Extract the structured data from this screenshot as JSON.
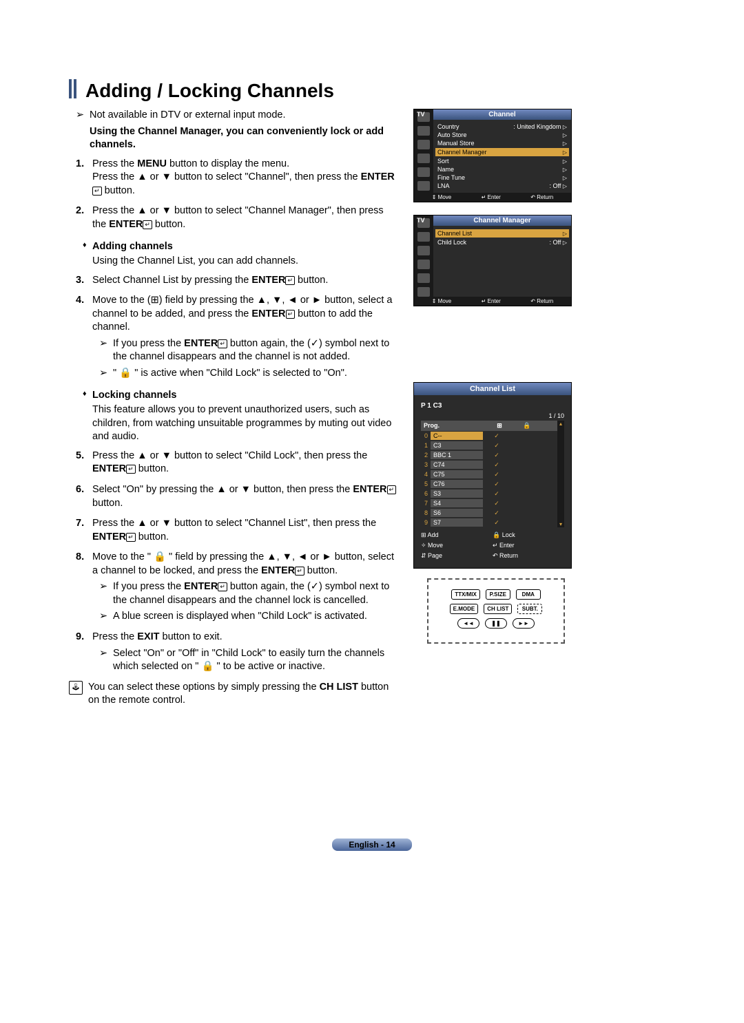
{
  "title": "Adding / Locking Channels",
  "note_not_available": "Not available in DTV or external input mode.",
  "intro_bold": "Using the Channel Manager, you can conveniently lock or add channels.",
  "steps": {
    "s1": {
      "num": "1.",
      "a": "Press the ",
      "b": "MENU",
      "c": " button to display the menu.",
      "d": "Press the ▲ or ▼ button to select \"Channel\", then press the ",
      "e": "ENTER",
      "f": " button."
    },
    "s2": {
      "num": "2.",
      "a": "Press the ▲ or ▼ button to select \"Channel Manager\", then press the ",
      "b": "ENTER",
      "c": " button."
    },
    "add_head": "Adding channels",
    "add_sub": "Using the Channel List, you can add channels.",
    "s3": {
      "num": "3.",
      "a": "Select Channel List by pressing the ",
      "b": "ENTER",
      "c": " button."
    },
    "s4": {
      "num": "4.",
      "a": "Move to the (⊞) field by pressing the ▲, ▼, ◄ or ► button, select a channel to be added, and press the ",
      "b": "ENTER",
      "c": " button to add the channel.",
      "n1a": "If you press the ",
      "n1b": "ENTER",
      "n1c": " button again, the (✓) symbol next to the channel disappears and the channel is not added.",
      "n2": "\" 🔒 \" is active when \"Child Lock\" is selected to \"On\"."
    },
    "lock_head": "Locking channels",
    "lock_sub": "This feature allows you to prevent unauthorized users, such as children, from watching unsuitable programmes by muting out video and audio.",
    "s5": {
      "num": "5.",
      "a": "Press the ▲ or ▼ button to select \"Child Lock\", then press the ",
      "b": "ENTER",
      "c": " button."
    },
    "s6": {
      "num": "6.",
      "a": "Select \"On\" by pressing the ▲ or ▼ button, then press the ",
      "b": "ENTER",
      "c": " button."
    },
    "s7": {
      "num": "7.",
      "a": "Press the ▲ or ▼ button to select \"Channel List\", then press the ",
      "b": "ENTER",
      "c": " button."
    },
    "s8": {
      "num": "8.",
      "a": "Move to the \" 🔒 \" field by pressing the ▲, ▼, ◄ or ► button, select a channel to be locked, and press the ",
      "b": "ENTER",
      "c": " button.",
      "n1a": "If you press the ",
      "n1b": "ENTER",
      "n1c": " button again, the (✓) symbol next to the channel disappears and the channel lock is cancelled.",
      "n2": "A blue screen is displayed when \"Child Lock\" is activated."
    },
    "s9": {
      "num": "9.",
      "a": "Press the ",
      "b": "EXIT",
      "c": " button to exit.",
      "n1": "Select \"On\" or \"Off\" in \"Child Lock\" to easily turn the channels which selected on \" 🔒 \" to be active or inactive."
    }
  },
  "footnote": {
    "a": "You can select these options by simply pressing the ",
    "b": "CH LIST",
    "c": " button on the remote control."
  },
  "osd1": {
    "tv": "TV",
    "title": "Channel",
    "rows": [
      {
        "l": "Country",
        "r": ": United Kingdom"
      },
      {
        "l": "Auto Store",
        "r": ""
      },
      {
        "l": "Manual Store",
        "r": ""
      },
      {
        "l": "Channel Manager",
        "r": "",
        "sel": true
      },
      {
        "l": "Sort",
        "r": ""
      },
      {
        "l": "Name",
        "r": ""
      },
      {
        "l": "Fine Tune",
        "r": ""
      },
      {
        "l": "LNA",
        "r": ": Off"
      }
    ],
    "foot": {
      "move": "Move",
      "enter": "Enter",
      "return": "Return"
    }
  },
  "osd2": {
    "tv": "TV",
    "title": "Channel Manager",
    "rows": [
      {
        "l": "Channel List",
        "r": "",
        "sel": true
      },
      {
        "l": "Child Lock",
        "r": ": Off"
      }
    ],
    "foot": {
      "move": "Move",
      "enter": "Enter",
      "return": "Return"
    }
  },
  "chlist": {
    "title": "Channel List",
    "p": "P   1   C3",
    "page": "1 / 10",
    "col_prog": "Prog.",
    "rows": [
      {
        "n": "0",
        "name": "C--",
        "chk": true,
        "sel": true
      },
      {
        "n": "1",
        "name": "C3",
        "chk": true
      },
      {
        "n": "2",
        "name": "BBC 1",
        "chk": true
      },
      {
        "n": "3",
        "name": "C74",
        "chk": true
      },
      {
        "n": "4",
        "name": "C75",
        "chk": true
      },
      {
        "n": "5",
        "name": "C76",
        "chk": true
      },
      {
        "n": "6",
        "name": "S3",
        "chk": true
      },
      {
        "n": "7",
        "name": "S4",
        "chk": true
      },
      {
        "n": "8",
        "name": "S6",
        "chk": true
      },
      {
        "n": "9",
        "name": "S7",
        "chk": true
      }
    ],
    "legend": {
      "add": "Add",
      "lock": "Lock",
      "move": "Move",
      "enter": "Enter",
      "page": "Page",
      "return": "Return"
    }
  },
  "remote": {
    "r1": [
      "TTX/MIX",
      "P.SIZE",
      "DMA"
    ],
    "r2": [
      "E.MODE",
      "CH LIST",
      "SUBT."
    ],
    "r3": [
      "◄◄",
      "❚❚",
      "►►"
    ]
  },
  "footer": "English - 14",
  "colors": {
    "accent": "#d9a441",
    "panel": "#2b2b2b",
    "header_grad_a": "#7189bf",
    "header_grad_b": "#3a537d"
  }
}
